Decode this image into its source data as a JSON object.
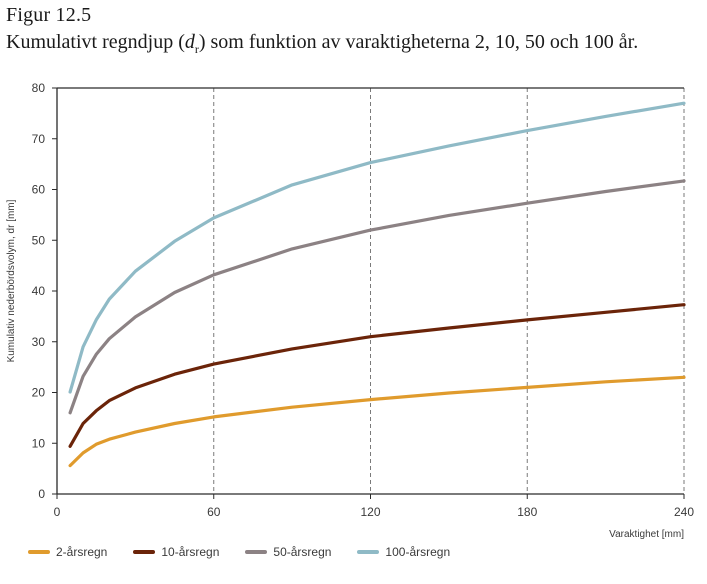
{
  "figure": {
    "label": "Figur 12.5",
    "title_before": "Kumulativt regndjup (",
    "title_symbol": "d",
    "title_subscript": "r",
    "title_after": ") som funktion av varaktigheterna 2, 10, 50 och 100 år."
  },
  "chart_data": {
    "type": "line",
    "title": "Kumulativt regndjup (dr) som funktion av varaktigheterna 2, 10, 50 och 100 år.",
    "xlabel": "Varaktighet [mm]",
    "ylabel": "Kumulativ nederbördsvolym, dr [mm]",
    "xlim": [
      0,
      240
    ],
    "ylim": [
      0,
      80
    ],
    "x_ticks": [
      0,
      60,
      120,
      180,
      240
    ],
    "y_ticks": [
      0,
      10,
      20,
      30,
      40,
      50,
      60,
      70,
      80
    ],
    "grid": "dashed vertical lines at 60, 120, 180, 240; solid horizontal y=80 line",
    "legend_position": "bottom",
    "series": [
      {
        "name": "2-årsregn",
        "color": "#e09b2d",
        "points": [
          [
            5,
            5.6
          ],
          [
            10,
            8.1
          ],
          [
            15,
            9.8
          ],
          [
            20,
            10.8
          ],
          [
            30,
            12.2
          ],
          [
            45,
            13.9
          ],
          [
            60,
            15.2
          ],
          [
            90,
            17.1
          ],
          [
            120,
            18.6
          ],
          [
            150,
            19.9
          ],
          [
            180,
            21.0
          ],
          [
            210,
            22.1
          ],
          [
            240,
            23.0
          ]
        ]
      },
      {
        "name": "10-årsregn",
        "color": "#6b2409",
        "points": [
          [
            5,
            9.4
          ],
          [
            10,
            13.9
          ],
          [
            15,
            16.4
          ],
          [
            20,
            18.4
          ],
          [
            30,
            20.9
          ],
          [
            45,
            23.6
          ],
          [
            60,
            25.6
          ],
          [
            90,
            28.6
          ],
          [
            120,
            31.0
          ],
          [
            150,
            32.7
          ],
          [
            180,
            34.3
          ],
          [
            210,
            35.8
          ],
          [
            240,
            37.3
          ]
        ]
      },
      {
        "name": "50-årsregn",
        "color": "#8c8284",
        "points": [
          [
            5,
            16.0
          ],
          [
            10,
            23.2
          ],
          [
            15,
            27.5
          ],
          [
            20,
            30.6
          ],
          [
            30,
            34.9
          ],
          [
            45,
            39.7
          ],
          [
            60,
            43.2
          ],
          [
            90,
            48.3
          ],
          [
            120,
            52.0
          ],
          [
            150,
            54.9
          ],
          [
            180,
            57.3
          ],
          [
            210,
            59.6
          ],
          [
            240,
            61.7
          ]
        ]
      },
      {
        "name": "100-årsregn",
        "color": "#8fbac6",
        "points": [
          [
            5,
            20.1
          ],
          [
            10,
            29.0
          ],
          [
            15,
            34.3
          ],
          [
            20,
            38.4
          ],
          [
            30,
            43.9
          ],
          [
            45,
            49.8
          ],
          [
            60,
            54.4
          ],
          [
            90,
            60.9
          ],
          [
            120,
            65.3
          ],
          [
            150,
            68.6
          ],
          [
            180,
            71.6
          ],
          [
            210,
            74.4
          ],
          [
            240,
            77.0
          ]
        ]
      }
    ]
  }
}
